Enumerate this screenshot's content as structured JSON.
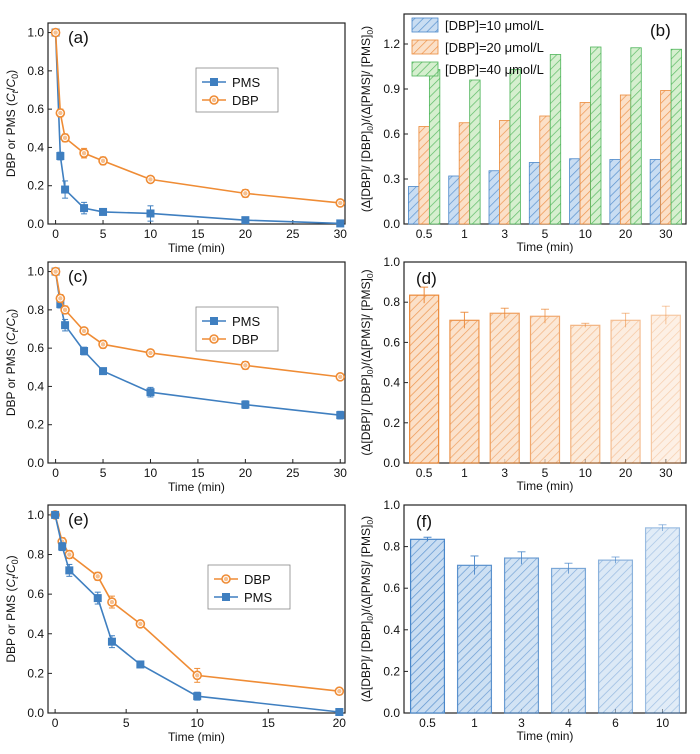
{
  "colors": {
    "pms": "#3f7fc0",
    "dbp": "#ef8c35",
    "blue_light": "#a9c9ea",
    "orange_light": "#f8c9a0",
    "green_light": "#b6e0a8",
    "blue_edge": "#4a87c9",
    "orange_edge": "#ec8a3a",
    "green_edge": "#4fb55a"
  },
  "chart_data": [
    {
      "panel": "(a)",
      "type": "line",
      "xlabel": "Time (min)",
      "ylabel": "DBP or PMS (Ct/C0)",
      "xlim": [
        -0.8,
        30.5
      ],
      "ylim": [
        0,
        1.05
      ],
      "xticks": [
        "0",
        "5",
        "10",
        "15",
        "20",
        "25",
        "30"
      ],
      "yticks": [
        "0.0",
        "0.2",
        "0.4",
        "0.6",
        "0.8",
        "1.0"
      ],
      "legend": [
        "PMS",
        "DBP"
      ],
      "series": [
        {
          "name": "PMS",
          "x": [
            0,
            0.5,
            1,
            3,
            5,
            10,
            20,
            30
          ],
          "y": [
            1.0,
            0.355,
            0.18,
            0.083,
            0.063,
            0.055,
            0.02,
            0.003
          ],
          "err": [
            0,
            0.02,
            0.045,
            0.03,
            0.01,
            0.04,
            0.01,
            0.005
          ]
        },
        {
          "name": "DBP",
          "x": [
            0,
            0.5,
            1,
            3,
            5,
            10,
            20,
            30
          ],
          "y": [
            1.0,
            0.58,
            0.45,
            0.37,
            0.33,
            0.233,
            0.16,
            0.11
          ],
          "err": [
            0,
            0.02,
            0.02,
            0.025,
            0.02,
            0.015,
            0.02,
            0.01
          ]
        }
      ]
    },
    {
      "panel": "(b)",
      "type": "bar",
      "xlabel": "Time (min)",
      "ylabel": "(Δ[DBP]/[DBP]0)/(Δ[PMS]/[PMS]0)",
      "ylim": [
        0,
        1.4
      ],
      "categories": [
        "0.5",
        "1",
        "3",
        "5",
        "10",
        "20",
        "30"
      ],
      "yticks": [
        "0.0",
        "0.3",
        "0.6",
        "0.9",
        "1.2"
      ],
      "legend": [
        "[DBP]=10 μmol/L",
        "[DBP]=20 μmol/L",
        "[DBP]=40 μmol/L"
      ],
      "series": [
        {
          "name": "[DBP]=10 μmol/L",
          "values": [
            0.25,
            0.32,
            0.355,
            0.41,
            0.435,
            0.43,
            0.43
          ]
        },
        {
          "name": "[DBP]=20 μmol/L",
          "values": [
            0.65,
            0.675,
            0.69,
            0.72,
            0.81,
            0.86,
            0.89
          ]
        },
        {
          "name": "[DBP]=40 μmol/L",
          "values": [
            1.03,
            0.96,
            1.03,
            1.13,
            1.18,
            1.175,
            1.165
          ]
        }
      ]
    },
    {
      "panel": "(c)",
      "type": "line",
      "xlabel": "Time (min)",
      "ylabel": "DBP or PMS (Ct/C0)",
      "xlim": [
        -0.8,
        30.5
      ],
      "ylim": [
        0,
        1.05
      ],
      "xticks": [
        "0",
        "5",
        "10",
        "15",
        "20",
        "25",
        "30"
      ],
      "yticks": [
        "0.0",
        "0.2",
        "0.4",
        "0.6",
        "0.8",
        "1.0"
      ],
      "legend": [
        "PMS",
        "DBP"
      ],
      "series": [
        {
          "name": "PMS",
          "x": [
            0,
            0.5,
            1,
            3,
            5,
            10,
            20,
            30
          ],
          "y": [
            1.0,
            0.83,
            0.72,
            0.585,
            0.48,
            0.37,
            0.305,
            0.25
          ],
          "err": [
            0,
            0.02,
            0.03,
            0.02,
            0.015,
            0.025,
            0.02,
            0.02
          ]
        },
        {
          "name": "DBP",
          "x": [
            0,
            0.5,
            1,
            3,
            5,
            10,
            20,
            30
          ],
          "y": [
            1.0,
            0.86,
            0.8,
            0.69,
            0.62,
            0.575,
            0.51,
            0.45
          ],
          "err": [
            0,
            0.02,
            0.02,
            0.015,
            0.02,
            0.015,
            0.02,
            0.015
          ]
        }
      ]
    },
    {
      "panel": "(d)",
      "type": "bar",
      "xlabel": "Time (min)",
      "ylabel": "(Δ[DBP]/[DBP]0)/(Δ[PMS]/[PMS]0)",
      "ylim": [
        0,
        1.0
      ],
      "categories": [
        "0.5",
        "1",
        "3",
        "5",
        "10",
        "20",
        "30"
      ],
      "yticks": [
        "0.0",
        "0.2",
        "0.4",
        "0.6",
        "0.8",
        "1.0"
      ],
      "values": [
        0.835,
        0.71,
        0.745,
        0.73,
        0.685,
        0.71,
        0.735
      ],
      "err": [
        0.04,
        0.04,
        0.025,
        0.035,
        0.01,
        0.035,
        0.045
      ]
    },
    {
      "panel": "(e)",
      "type": "line",
      "xlabel": "Time (min)",
      "ylabel": "DBP or PMS (Ct/C0)",
      "xlim": [
        -0.5,
        20.4
      ],
      "ylim": [
        0,
        1.05
      ],
      "xticks": [
        "0",
        "5",
        "10",
        "15",
        "20"
      ],
      "yticks": [
        "0.0",
        "0.2",
        "0.4",
        "0.6",
        "0.8",
        "1.0"
      ],
      "legend": [
        "DBP",
        "PMS"
      ],
      "series": [
        {
          "name": "DBP",
          "x": [
            0,
            0.5,
            1,
            3,
            4,
            6,
            10,
            20
          ],
          "y": [
            1.0,
            0.865,
            0.8,
            0.69,
            0.56,
            0.45,
            0.19,
            0.11
          ],
          "err": [
            0,
            0.02,
            0.02,
            0.02,
            0.03,
            0.015,
            0.035,
            0.015
          ]
        },
        {
          "name": "PMS",
          "x": [
            0,
            0.5,
            1,
            3,
            4,
            6,
            10,
            20
          ],
          "y": [
            1.0,
            0.84,
            0.72,
            0.58,
            0.36,
            0.245,
            0.085,
            0.005
          ],
          "err": [
            0,
            0.02,
            0.03,
            0.03,
            0.03,
            0.015,
            0.02,
            0.005
          ]
        }
      ]
    },
    {
      "panel": "(f)",
      "type": "bar",
      "xlabel": "Time (min)",
      "ylabel": "(Δ[DBP]/[DBP]0)/(Δ[PMS]/[PMS]0)",
      "ylim": [
        0,
        1.0
      ],
      "categories": [
        "0.5",
        "1",
        "3",
        "4",
        "6",
        "10"
      ],
      "yticks": [
        "0.0",
        "0.2",
        "0.4",
        "0.6",
        "0.8",
        "1.0"
      ],
      "values": [
        0.835,
        0.71,
        0.745,
        0.695,
        0.735,
        0.89
      ],
      "err": [
        0.01,
        0.045,
        0.03,
        0.025,
        0.015,
        0.015
      ]
    }
  ]
}
